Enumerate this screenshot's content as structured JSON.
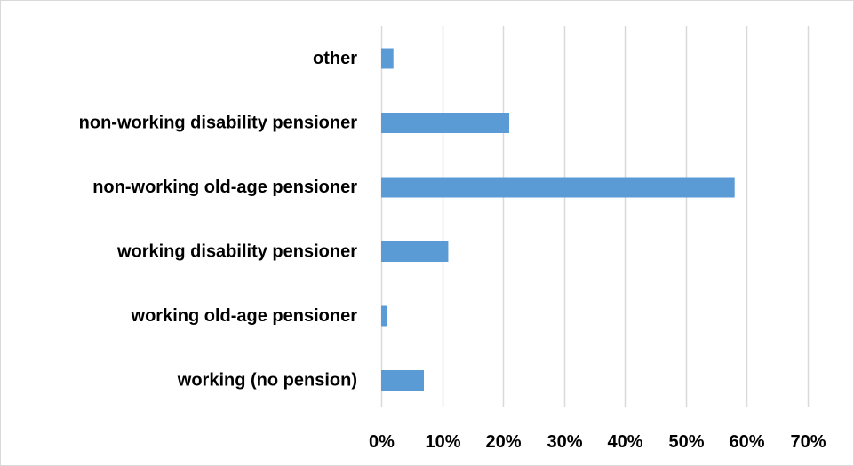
{
  "chart_data": {
    "type": "bar",
    "orientation": "horizontal",
    "categories": [
      "other",
      "non-working disability pensioner",
      "non-working old-age pensioner",
      "working disability pensioner",
      "working old-age pensioner",
      "working (no pension)"
    ],
    "values": [
      2,
      21,
      58,
      11,
      1,
      7
    ],
    "value_unit": "%",
    "xlim": [
      0,
      70
    ],
    "x_ticks": [
      "0%",
      "10%",
      "20%",
      "30%",
      "40%",
      "50%",
      "60%",
      "70%"
    ],
    "title": "",
    "xlabel": "",
    "ylabel": "",
    "grid": "vertical",
    "legend": "none",
    "colors": {
      "bar": "#5b9bd5",
      "grid": "#d9d9d9",
      "text": "#000000"
    }
  }
}
